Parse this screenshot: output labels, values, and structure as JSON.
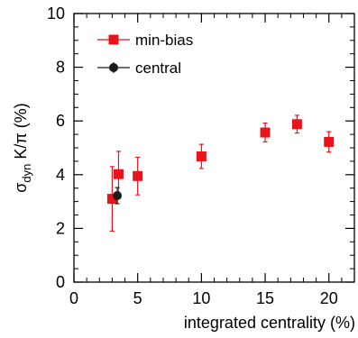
{
  "chart_data": {
    "type": "scatter",
    "xlabel": "integrated centrality (%)",
    "ylabel": {
      "main": "σ",
      "sub": "dyn",
      "rest": " K/π (%)"
    },
    "xlim": [
      0,
      22
    ],
    "ylim": [
      0,
      10
    ],
    "x_ticks": [
      0,
      5,
      10,
      15,
      20
    ],
    "y_ticks": [
      0,
      2,
      4,
      6,
      8,
      10
    ],
    "legend_position": "top-left",
    "grid": false,
    "series": [
      {
        "name": "min-bias",
        "marker": "square",
        "color": "#e8141c",
        "points": [
          {
            "x": 3.0,
            "y": 3.1,
            "err_lo": 1.2,
            "err_hi": 1.2
          },
          {
            "x": 3.5,
            "y": 4.02,
            "err_lo": 0.85,
            "err_hi": 0.85
          },
          {
            "x": 5.0,
            "y": 3.95,
            "err_lo": 0.7,
            "err_hi": 0.7
          },
          {
            "x": 10.0,
            "y": 4.68,
            "err_lo": 0.45,
            "err_hi": 0.45
          },
          {
            "x": 15.0,
            "y": 5.57,
            "err_lo": 0.35,
            "err_hi": 0.35
          },
          {
            "x": 17.5,
            "y": 5.88,
            "err_lo": 0.33,
            "err_hi": 0.33
          },
          {
            "x": 20.0,
            "y": 5.22,
            "err_lo": 0.38,
            "err_hi": 0.38
          }
        ]
      },
      {
        "name": "central",
        "marker": "circle",
        "color": "#1a1a1a",
        "points": [
          {
            "x": 3.4,
            "y": 3.22,
            "err_lo": 0.3,
            "err_hi": 0.3
          }
        ]
      }
    ]
  }
}
